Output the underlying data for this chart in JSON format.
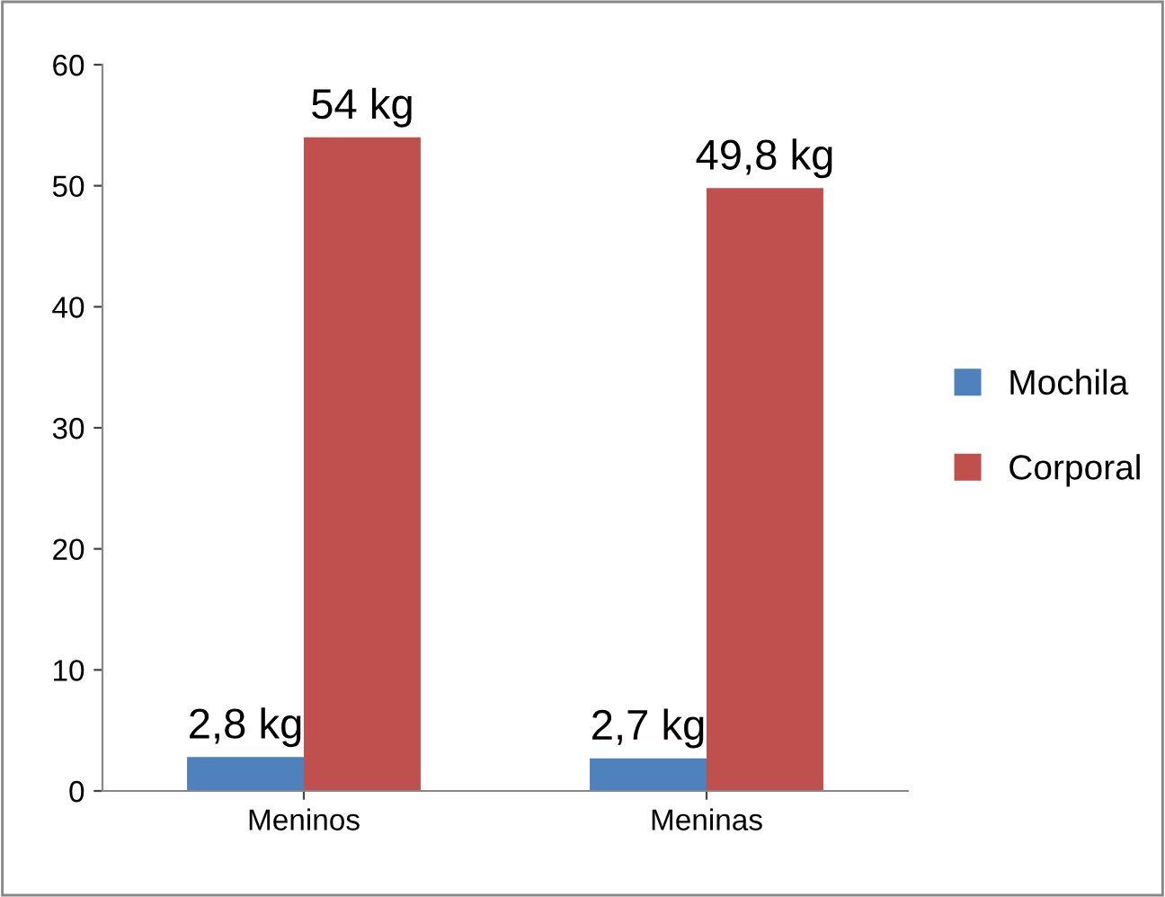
{
  "chart_data": {
    "type": "bar",
    "categories": [
      "Meninos",
      "Meninas"
    ],
    "series": [
      {
        "name": "Mochila",
        "color": "#4f81bd",
        "values": [
          2.8,
          2.7
        ],
        "value_labels": [
          "2,8 kg",
          "2,7 kg"
        ]
      },
      {
        "name": "Corporal",
        "color": "#c0504d",
        "values": [
          54,
          49.8
        ],
        "value_labels": [
          "54 kg",
          "49,8 kg"
        ]
      }
    ],
    "ylim": [
      0,
      60
    ],
    "yticks": [
      0,
      10,
      20,
      30,
      40,
      50,
      60
    ],
    "grid": false,
    "legend": "right"
  }
}
